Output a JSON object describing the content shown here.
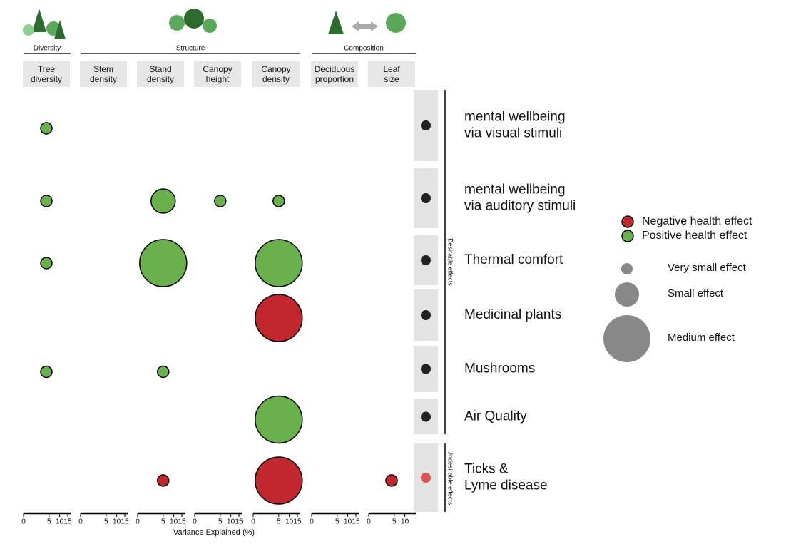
{
  "chart_data": {
    "type": "bubble-matrix",
    "x_label": "Variance Explained (%)",
    "x_scale": "sqrt",
    "xlim": [
      0,
      17
    ],
    "groups": [
      {
        "label": "Diversity",
        "columns": [
          0,
          0
        ]
      },
      {
        "label": "Structure",
        "columns": [
          1,
          4
        ]
      },
      {
        "label": "Composition",
        "columns": [
          5,
          6
        ]
      }
    ],
    "columns": [
      {
        "label": [
          "Tree",
          "diversity"
        ],
        "xticks": [
          0,
          5,
          10,
          15
        ]
      },
      {
        "label": [
          "Stem",
          "density"
        ],
        "xticks": [
          0,
          5,
          10,
          15
        ]
      },
      {
        "label": [
          "Stand",
          "density"
        ],
        "xticks": [
          0,
          5,
          10,
          15
        ]
      },
      {
        "label": [
          "Canopy",
          "height"
        ],
        "xticks": [
          0,
          5,
          10,
          15
        ]
      },
      {
        "label": [
          "Canopy",
          "density"
        ],
        "xticks": [
          0,
          5,
          10,
          15
        ]
      },
      {
        "label": [
          "Deciduous",
          "proportion"
        ],
        "xticks": [
          0,
          5,
          10,
          15
        ]
      },
      {
        "label": [
          "Leaf",
          "size"
        ],
        "xticks": [
          0,
          5,
          10
        ]
      }
    ],
    "rows": [
      {
        "label": [
          "mental wellbeing",
          "via visual stimuli"
        ]
      },
      {
        "label": [
          "mental wellbeing",
          "via auditory stimuli"
        ]
      },
      {
        "label": [
          "Thermal comfort"
        ]
      },
      {
        "label": [
          "Medicinal plants"
        ]
      },
      {
        "label": [
          "Mushrooms"
        ]
      },
      {
        "label": [
          "Air Quality"
        ]
      },
      {
        "label": [
          "Ticks &",
          "Lyme disease"
        ]
      }
    ],
    "row_groups": [
      {
        "label": "Desirable effects",
        "rows": [
          0,
          5
        ]
      },
      {
        "label": "Undesirable effects",
        "rows": [
          6,
          6
        ]
      }
    ],
    "effects": [
      {
        "name": "Negative health effect",
        "color": "#c1272d"
      },
      {
        "name": "Positive health effect",
        "color": "#6ab04c"
      }
    ],
    "sizes": [
      {
        "name": "Very small effect"
      },
      {
        "name": "Small effect"
      },
      {
        "name": "Medium effect"
      }
    ],
    "points": [
      {
        "row": 0,
        "col": 0,
        "x": 4,
        "size": "Very small effect",
        "effect": "Positive health effect"
      },
      {
        "row": 1,
        "col": 0,
        "x": 4,
        "size": "Very small effect",
        "effect": "Positive health effect"
      },
      {
        "row": 1,
        "col": 2,
        "x": 5,
        "size": "Small effect",
        "effect": "Positive health effect"
      },
      {
        "row": 1,
        "col": 3,
        "x": 5,
        "size": "Very small effect",
        "effect": "Positive health effect"
      },
      {
        "row": 1,
        "col": 4,
        "x": 5,
        "size": "Very small effect",
        "effect": "Positive health effect"
      },
      {
        "row": 2,
        "col": 0,
        "x": 4,
        "size": "Very small effect",
        "effect": "Positive health effect"
      },
      {
        "row": 2,
        "col": 2,
        "x": 5,
        "size": "Medium effect",
        "effect": "Positive health effect"
      },
      {
        "row": 2,
        "col": 4,
        "x": 5,
        "size": "Medium effect",
        "effect": "Positive health effect"
      },
      {
        "row": 3,
        "col": 4,
        "x": 5,
        "size": "Medium effect",
        "effect": "Negative health effect"
      },
      {
        "row": 4,
        "col": 0,
        "x": 4,
        "size": "Very small effect",
        "effect": "Positive health effect"
      },
      {
        "row": 4,
        "col": 2,
        "x": 5,
        "size": "Very small effect",
        "effect": "Positive health effect"
      },
      {
        "row": 5,
        "col": 4,
        "x": 5,
        "size": "Medium effect",
        "effect": "Positive health effect"
      },
      {
        "row": 6,
        "col": 2,
        "x": 5,
        "size": "Very small effect",
        "effect": "Negative health effect"
      },
      {
        "row": 6,
        "col": 4,
        "x": 5,
        "size": "Medium effect",
        "effect": "Negative health effect"
      },
      {
        "row": 6,
        "col": 6,
        "x": 4,
        "size": "Very small effect",
        "effect": "Negative health effect"
      }
    ]
  }
}
